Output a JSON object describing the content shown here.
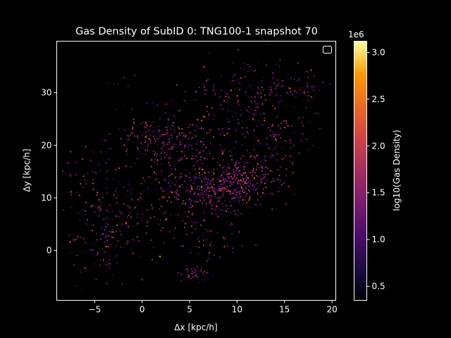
{
  "chart_data": {
    "type": "scatter",
    "title": "Gas Density of SubID 0: TNG100-1 snapshot 70",
    "xlabel": "Δx [kpc/h]",
    "ylabel": "Δy [kpc/h]",
    "xlim": [
      -9.0,
      20.4
    ],
    "ylim": [
      -9.5,
      39.8
    ],
    "xticks": [
      -5,
      0,
      5,
      10,
      15,
      20
    ],
    "yticks": [
      0,
      10,
      20,
      30
    ],
    "grid": false,
    "legend": "top-right (empty)",
    "colorbar": {
      "label": "log10(Gas Density)",
      "range": [
        0.35,
        3.12
      ],
      "ticks": [
        0.5,
        1.0,
        1.5,
        2.0,
        2.5,
        3.0
      ],
      "tick_labels": [
        "0.5",
        "1.0",
        "1.5",
        "2.0",
        "2.5",
        "3.0"
      ],
      "offset_label": "1e6",
      "colormap": "inferno"
    },
    "clusters": [
      {
        "cx": 7.5,
        "cy": 11.5,
        "sx": 2.6,
        "sy": 2.2,
        "n": 360
      },
      {
        "cx": 10.5,
        "cy": 14.5,
        "sx": 2.3,
        "sy": 2.6,
        "n": 260
      },
      {
        "cx": 3.5,
        "cy": 19.0,
        "sx": 1.8,
        "sy": 2.6,
        "n": 170
      },
      {
        "cx": 1.0,
        "cy": 22.0,
        "sx": 1.8,
        "sy": 2.0,
        "n": 80
      },
      {
        "cx": -4.0,
        "cy": 3.0,
        "sx": 2.4,
        "sy": 4.0,
        "n": 170
      },
      {
        "cx": 9.0,
        "cy": 25.0,
        "sx": 4.5,
        "sy": 3.5,
        "n": 140
      },
      {
        "cx": 12.0,
        "cy": 31.0,
        "sx": 3.5,
        "sy": 3.0,
        "n": 130
      },
      {
        "cx": 17.0,
        "cy": 31.5,
        "sx": 1.3,
        "sy": 1.5,
        "n": 30
      },
      {
        "cx": 5.5,
        "cy": -4.5,
        "sx": 0.7,
        "sy": 0.8,
        "n": 40
      },
      {
        "cx": 6.5,
        "cy": 2.0,
        "sx": 2.2,
        "sy": 1.6,
        "n": 50
      },
      {
        "cx": 15.0,
        "cy": 21.0,
        "sx": 1.5,
        "sy": 3.0,
        "n": 60
      },
      {
        "cx": 1.5,
        "cy": 9.0,
        "sx": 3.0,
        "sy": 4.0,
        "n": 90
      },
      {
        "cx": -4.5,
        "cy": 13.0,
        "sx": 2.0,
        "sy": 4.0,
        "n": 60
      },
      {
        "cx": -1.0,
        "cy": 31.5,
        "sx": 2.0,
        "sy": 1.0,
        "n": 6
      }
    ],
    "colors": {
      "background": "#000000",
      "foreground": "#ffffff"
    }
  }
}
